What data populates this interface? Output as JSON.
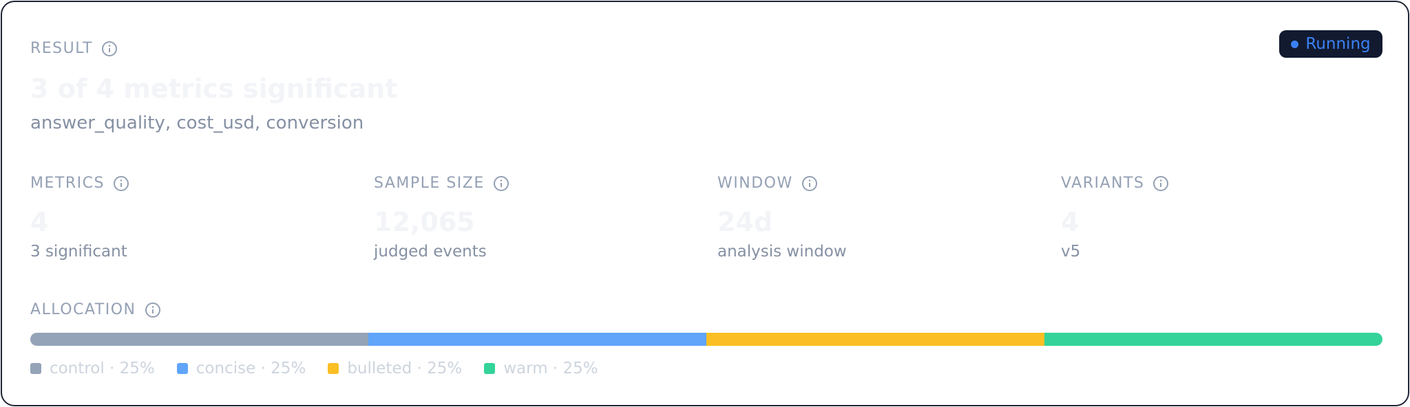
{
  "badge": "Running",
  "result": {
    "label": "RESULT",
    "headline": "3 of 4 metrics significant",
    "detail": "answer_quality, cost_usd, conversion"
  },
  "stats": [
    {
      "label": "METRICS",
      "value": "4",
      "note": "3 significant"
    },
    {
      "label": "SAMPLE SIZE",
      "value": "12,065",
      "note": "judged events"
    },
    {
      "label": "WINDOW",
      "value": "24d",
      "note": "analysis window"
    },
    {
      "label": "VARIANTS",
      "value": "4",
      "note": "v5"
    }
  ],
  "allocation": {
    "label": "ALLOCATION",
    "segments": [
      {
        "label": "control · 25%",
        "value": 25,
        "color": "#94a3b8"
      },
      {
        "label": "concise · 25%",
        "value": 25,
        "color": "#60a5fa"
      },
      {
        "label": "bulleted · 25%",
        "value": 25,
        "color": "#fbbf24"
      },
      {
        "label": "warm · 25%",
        "value": 25,
        "color": "#34d399"
      }
    ]
  }
}
